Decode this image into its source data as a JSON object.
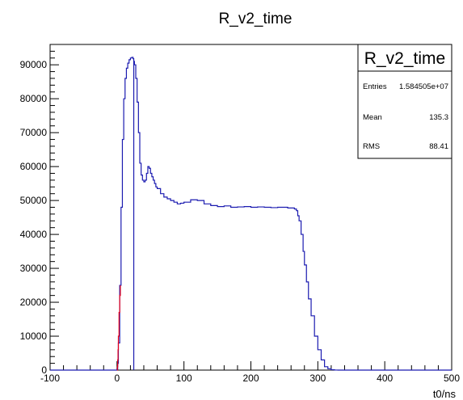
{
  "chart_data": {
    "type": "line",
    "title": "R_v2_time",
    "xlabel": "t0/ns",
    "ylabel": "",
    "xlim": [
      -100,
      500
    ],
    "ylim": [
      0,
      96000
    ],
    "x_ticks": [
      -100,
      0,
      100,
      200,
      300,
      400,
      500
    ],
    "y_ticks": [
      0,
      10000,
      20000,
      30000,
      40000,
      50000,
      60000,
      70000,
      80000,
      90000
    ],
    "stats_box": {
      "title": "R_v2_time",
      "rows": [
        {
          "label": "Entries",
          "value": "1.584505e+07"
        },
        {
          "label": "Mean",
          "value": "135.3"
        },
        {
          "label": "RMS",
          "value": "88.41"
        }
      ]
    },
    "colors": {
      "histogram": "#1b1bb0",
      "highlight": "#e8001a",
      "axis": "#000000"
    },
    "series": [
      {
        "color": "#1b1bb0",
        "x": [
          -100,
          -10,
          0,
          1,
          2,
          4,
          6,
          8,
          10,
          12,
          14,
          16,
          18,
          20,
          22,
          24,
          25,
          26,
          28,
          30,
          32,
          34,
          36,
          38,
          40,
          42,
          44,
          46,
          48,
          50,
          52,
          54,
          56,
          58,
          60,
          65,
          70,
          75,
          80,
          85,
          90,
          95,
          100,
          110,
          120,
          130,
          140,
          150,
          160,
          170,
          180,
          190,
          200,
          210,
          220,
          230,
          240,
          250,
          255,
          260,
          265,
          268,
          270,
          272,
          275,
          278,
          280,
          283,
          286,
          290,
          295,
          300,
          305,
          310,
          315,
          320,
          325,
          330,
          340,
          500
        ],
        "y": [
          0,
          0,
          300,
          2000,
          8000,
          25000,
          48000,
          68000,
          80000,
          86000,
          89000,
          90500,
          91500,
          92000,
          92200,
          91800,
          91000,
          90000,
          86000,
          79000,
          70000,
          61000,
          57500,
          56000,
          55500,
          56000,
          58000,
          60000,
          59500,
          58000,
          57000,
          56000,
          55000,
          54000,
          53500,
          52000,
          51000,
          50500,
          50000,
          49500,
          49000,
          49200,
          49500,
          50200,
          50000,
          49000,
          48500,
          48200,
          48400,
          48000,
          48100,
          48200,
          48000,
          48100,
          48000,
          47900,
          48000,
          48000,
          47800,
          47800,
          47500,
          47000,
          45500,
          44000,
          40000,
          35000,
          31000,
          26000,
          21000,
          16000,
          10000,
          6000,
          3000,
          1000,
          400,
          100,
          20,
          0,
          0,
          0
        ]
      },
      {
        "color": "#e8001a",
        "x": [
          0,
          0.5,
          1,
          1.5,
          2,
          3,
          4,
          5
        ],
        "y": [
          0,
          1000,
          3000,
          6000,
          10000,
          17000,
          22000,
          25000
        ]
      }
    ],
    "annotations": [
      {
        "type": "vertical_line",
        "x": 25,
        "color": "#1b1bb0"
      }
    ]
  }
}
